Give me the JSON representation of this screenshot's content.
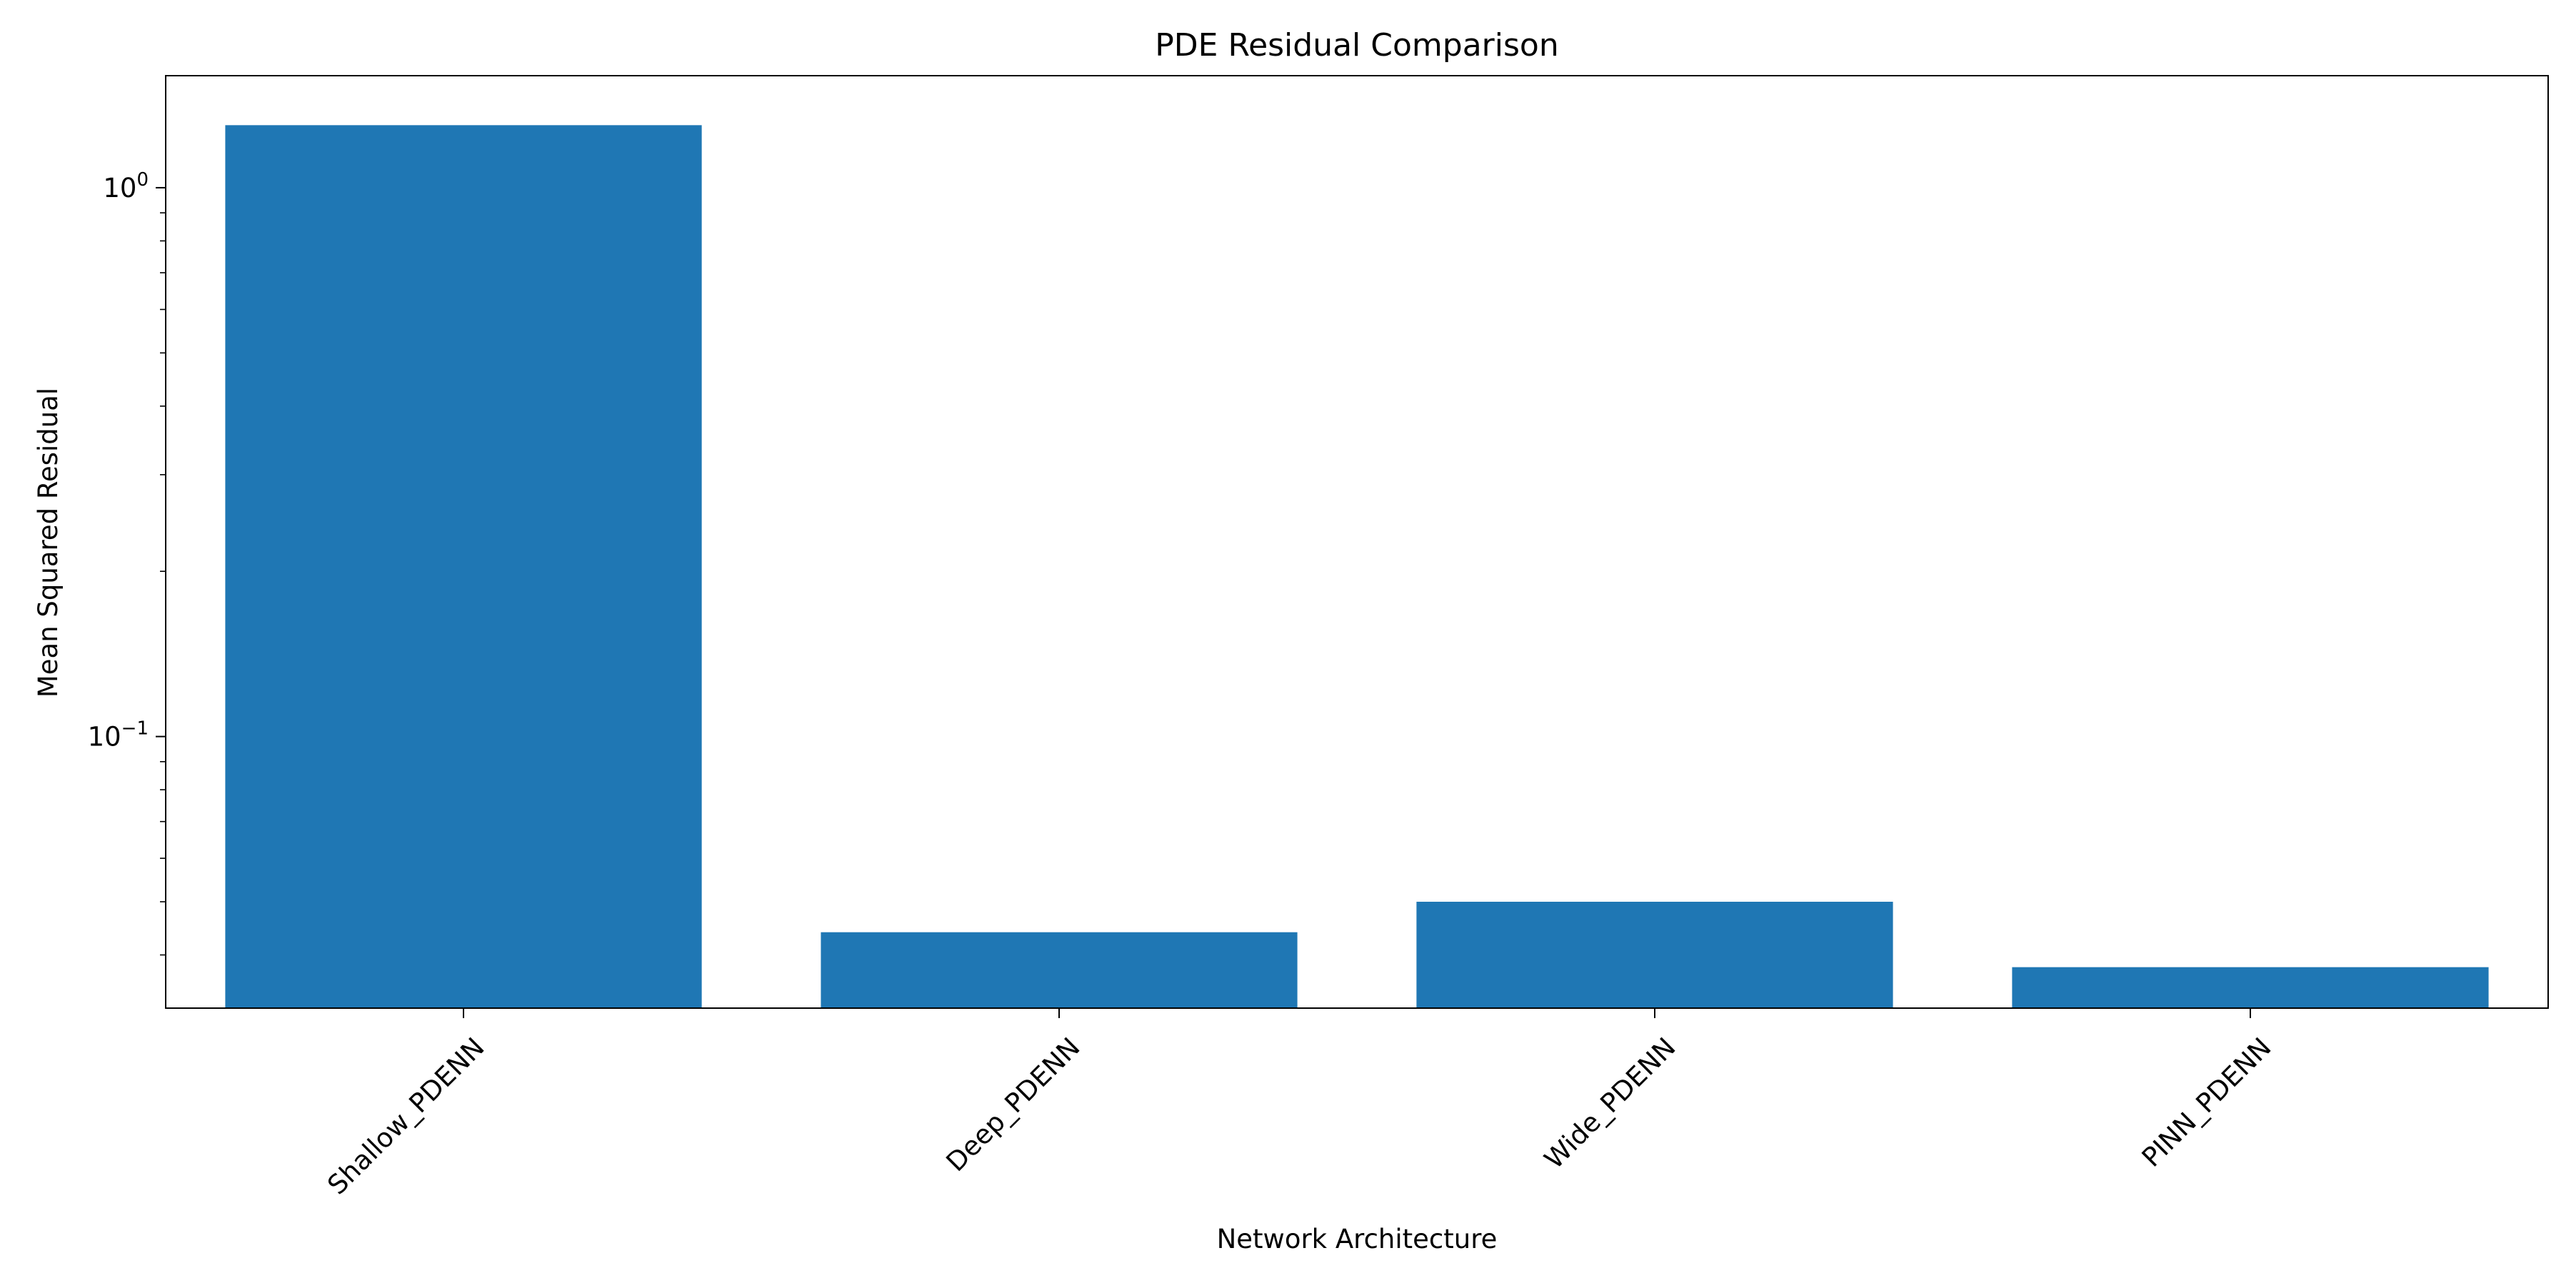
{
  "chart_data": {
    "type": "bar",
    "title": "PDE Residual Comparison",
    "xlabel": "Network Architecture",
    "ylabel": "Mean Squared Residual",
    "yscale": "log",
    "ylim": [
      0.032,
      1.6
    ],
    "categories": [
      "Shallow_PDENN",
      "Deep_PDENN",
      "Wide_PDENN",
      "PINN_PDENN"
    ],
    "values": [
      1.3,
      0.044,
      0.05,
      0.038
    ],
    "y_major_ticks": [
      {
        "value": 1,
        "base": "10",
        "exp": "0"
      },
      {
        "value": 0.1,
        "base": "10",
        "exp": "−1"
      }
    ],
    "y_minor_ticks": [
      0.04,
      0.05,
      0.06,
      0.07,
      0.08,
      0.09,
      0.2,
      0.3,
      0.4,
      0.5,
      0.6,
      0.7,
      0.8,
      0.9
    ],
    "bar_color": "#1f77b4",
    "grid": false,
    "legend": "none"
  }
}
